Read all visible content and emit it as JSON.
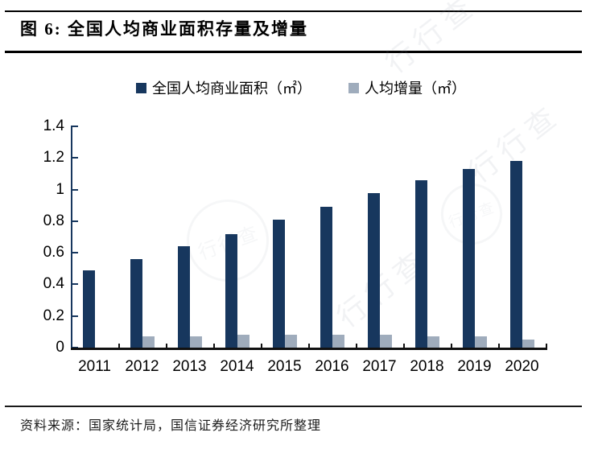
{
  "figure": {
    "title": "图 6:  全国人均商业面积存量及增量",
    "source": "资料来源：国家统计局，国信证券经济研究所整理",
    "watermark_text": "行行查"
  },
  "chart_data": {
    "type": "bar",
    "title": "全国人均商业面积存量及增量",
    "categories": [
      "2011",
      "2012",
      "2013",
      "2014",
      "2015",
      "2016",
      "2017",
      "2018",
      "2019",
      "2020"
    ],
    "series": [
      {
        "name": "全国人均商业面积（㎡）",
        "color": "#17375E",
        "values": [
          0.49,
          0.56,
          0.64,
          0.72,
          0.81,
          0.89,
          0.98,
          1.06,
          1.13,
          1.18
        ]
      },
      {
        "name": "人均增量（㎡）",
        "color": "#9FACBC",
        "values": [
          null,
          0.07,
          0.07,
          0.08,
          0.08,
          0.08,
          0.08,
          0.07,
          0.07,
          0.05
        ]
      }
    ],
    "ylim": [
      0,
      1.4
    ],
    "ytick_labels": [
      "0",
      "0.2",
      "0.4",
      "0.6",
      "0.8",
      "1",
      "1.2",
      "1.4"
    ],
    "xlabel": "",
    "ylabel": "",
    "grid": false,
    "legend_position": "top",
    "axis_colors": {
      "y_axis": "#17375E",
      "x_axis": "#111111"
    }
  }
}
